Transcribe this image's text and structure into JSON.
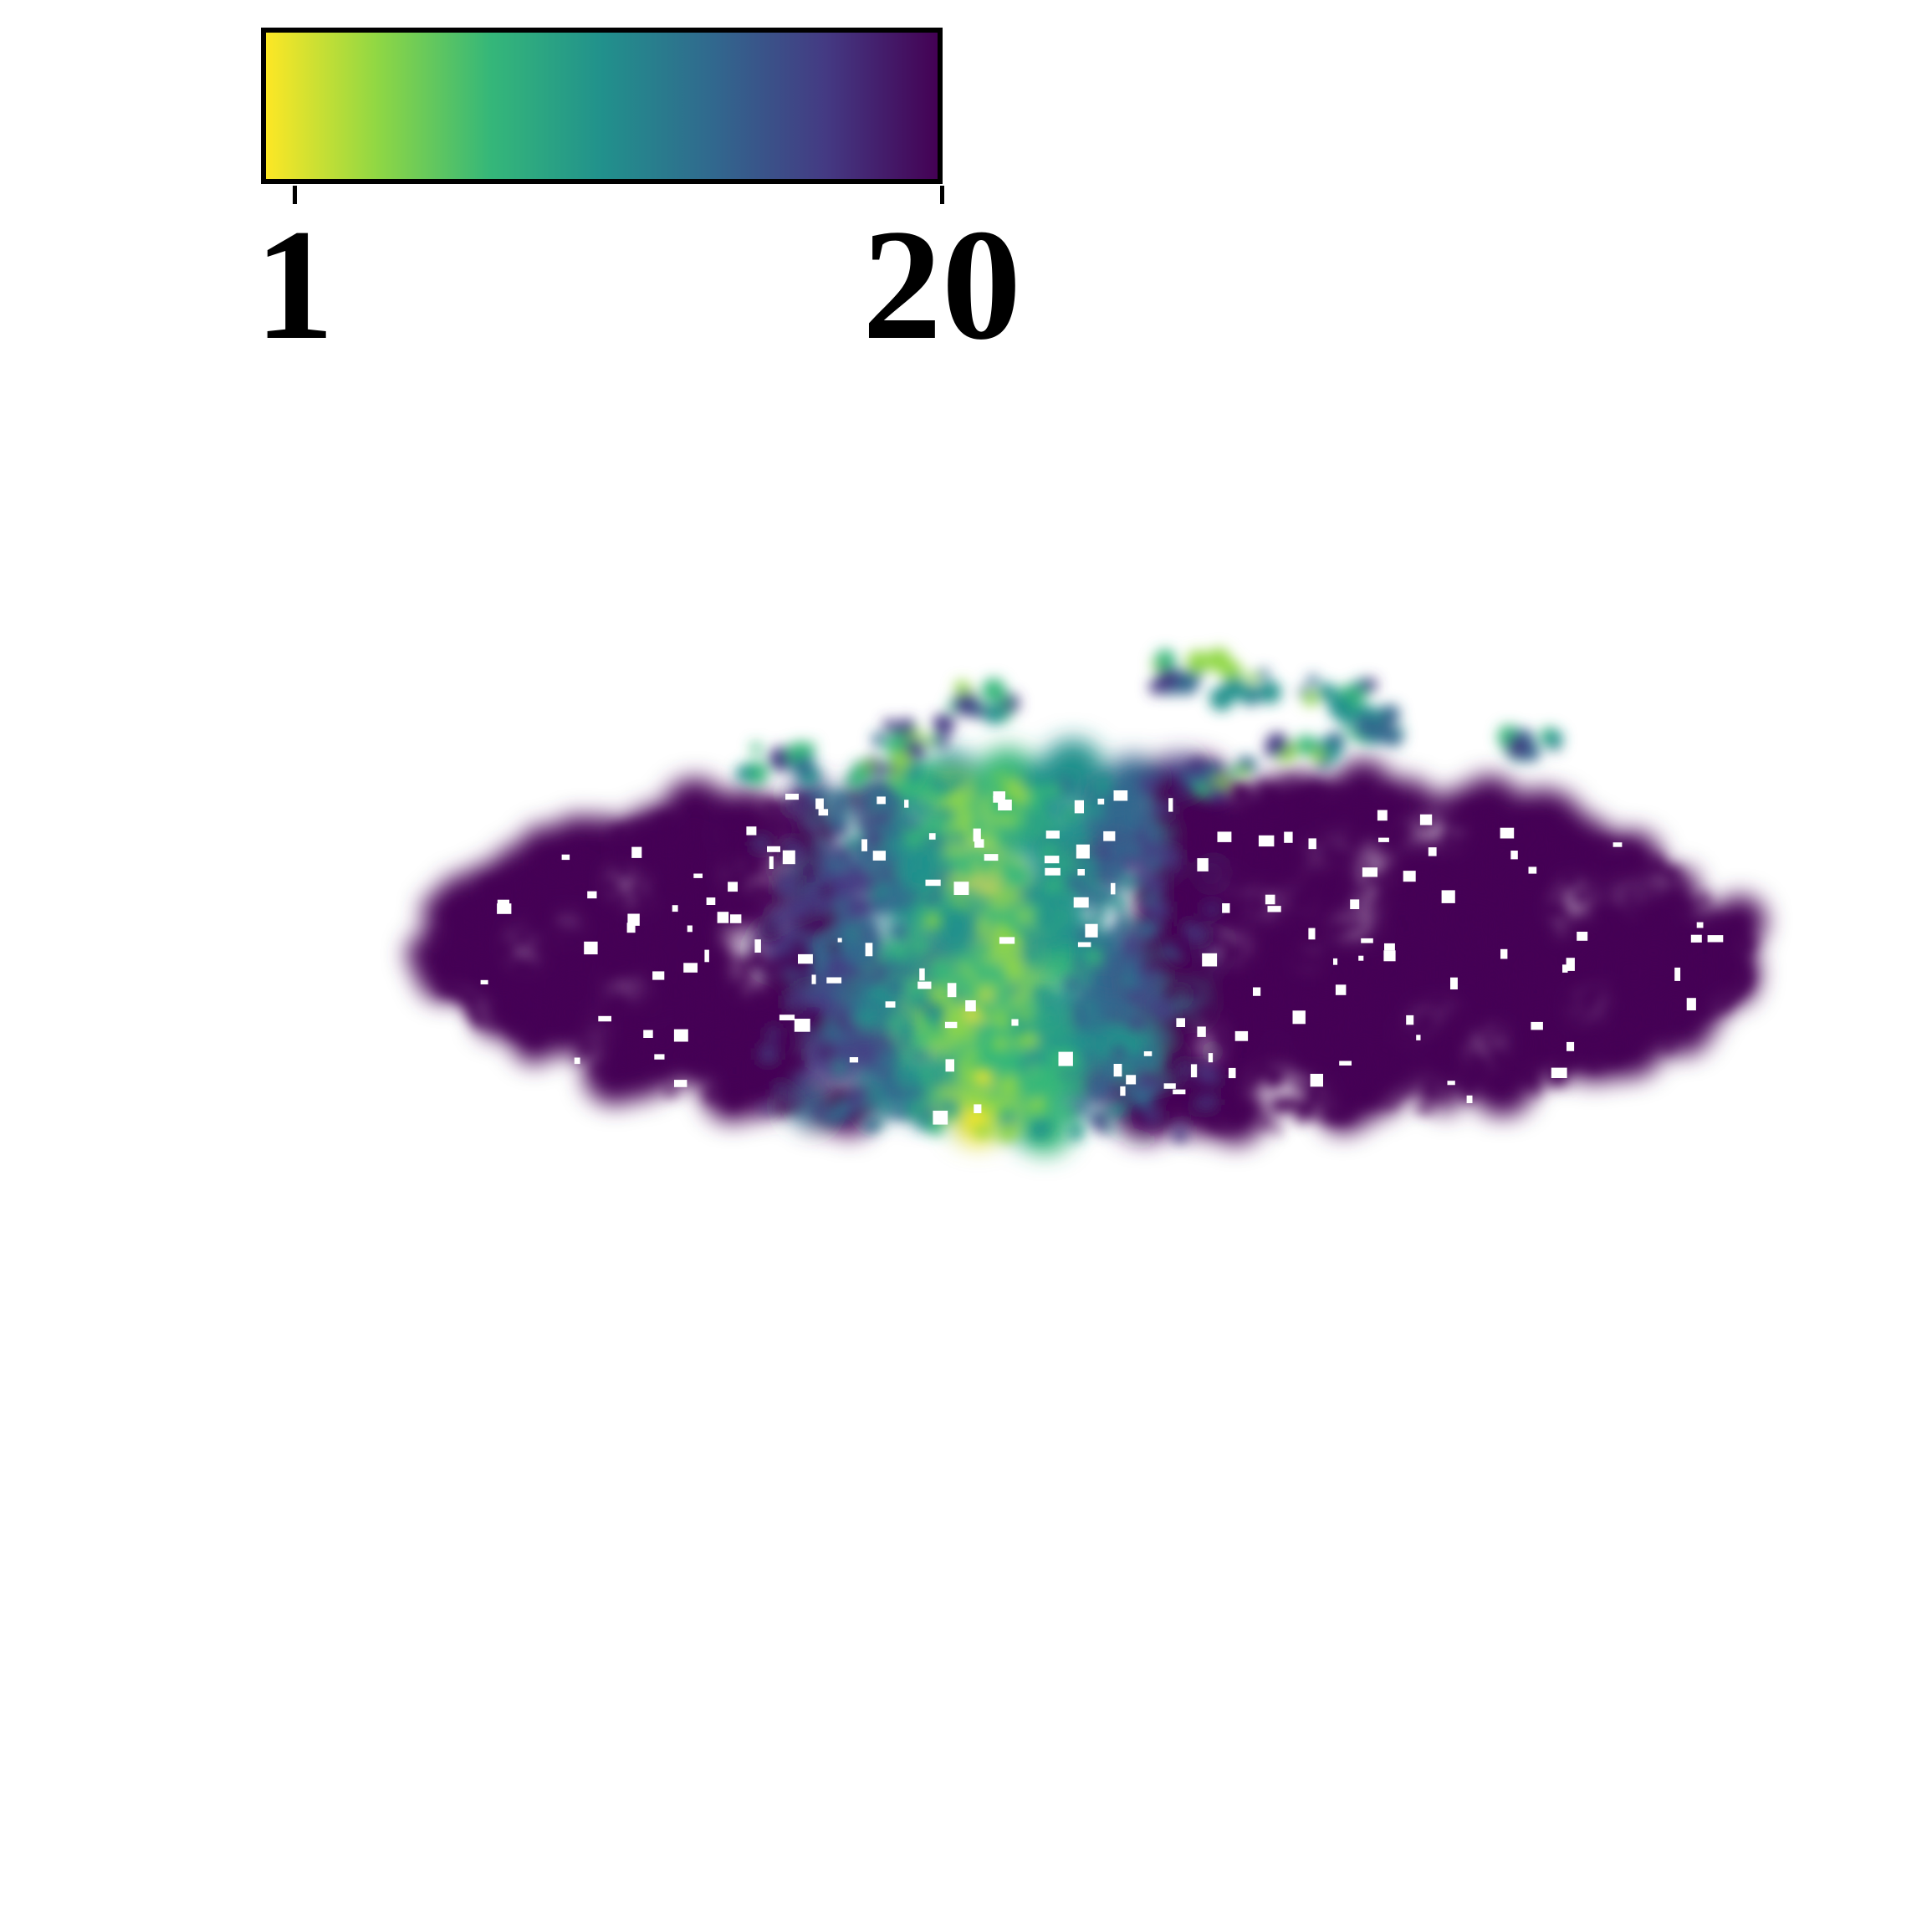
{
  "colorbar": {
    "min_label": "1",
    "max_label": "20",
    "min_value": 1,
    "max_value": 20,
    "colormap": "viridis_r",
    "colors": [
      "#fde725",
      "#8fd744",
      "#35b779",
      "#21918c",
      "#31688e",
      "#443a83",
      "#440154"
    ]
  },
  "map": {
    "background": "#ffffff"
  }
}
